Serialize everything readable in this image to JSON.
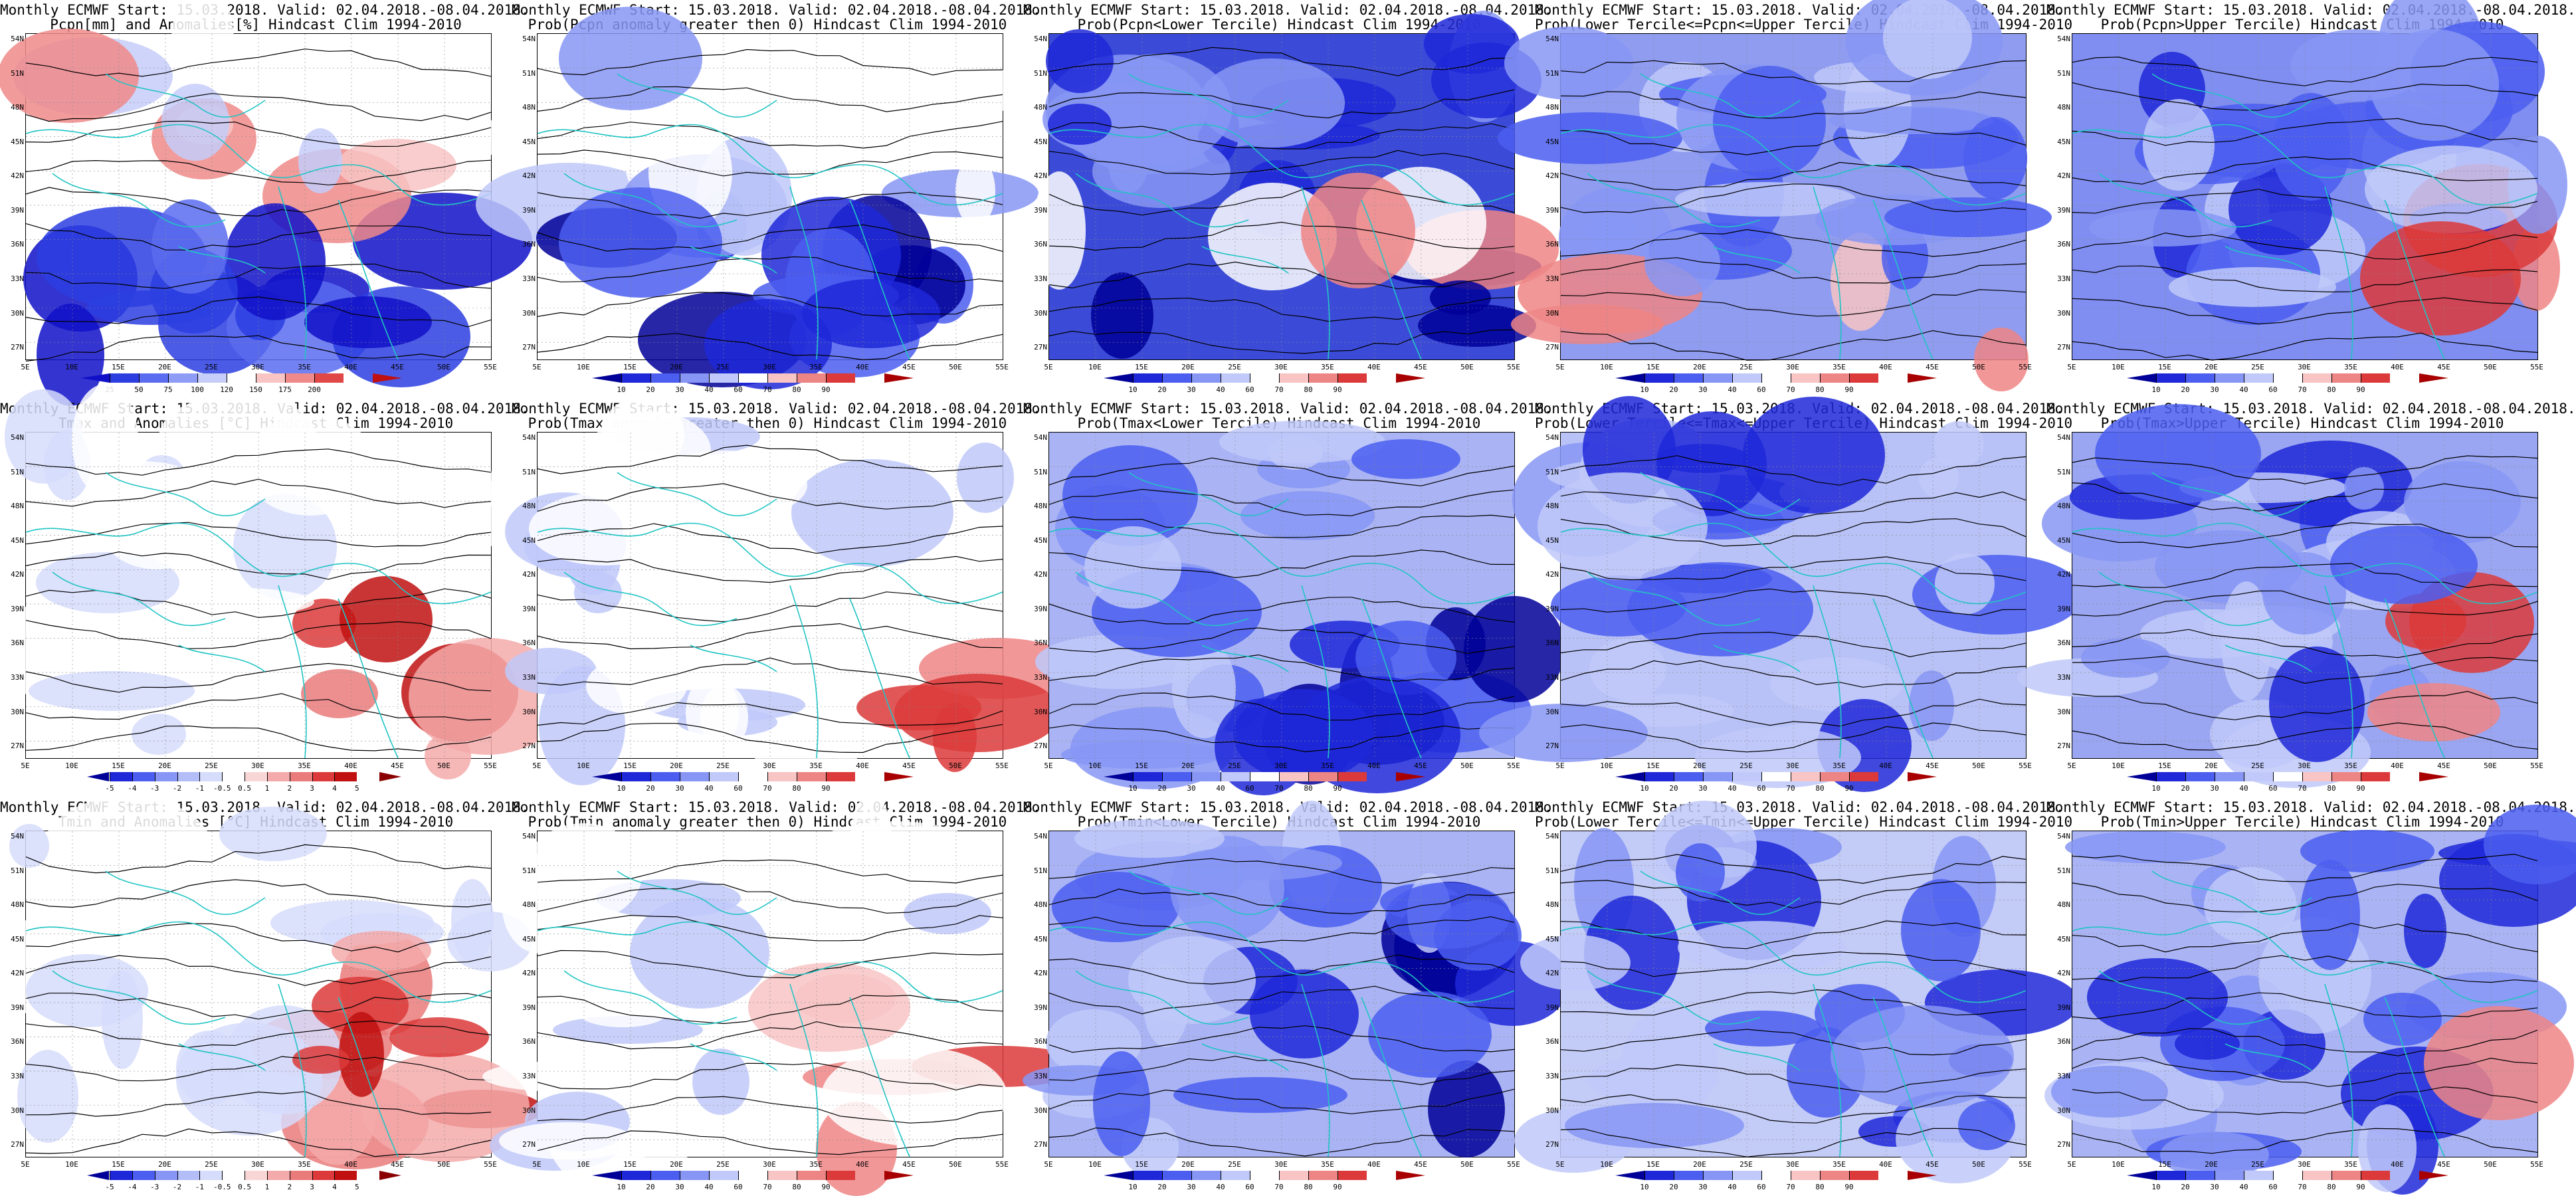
{
  "rows": [
    {
      "variable": "Pcpn",
      "panels": [
        {
          "title1": "Monthly ECMWF Start: 15.03.2018. Valid: 02.04.2018.-08.04.2018.",
          "title2": "Pcpn[mm] and Anomalies[%] Hindcast Clim 1994-2010",
          "scale": "pcpn_anom",
          "base_color": "#ffffff"
        },
        {
          "title1": "Monthly ECMWF Start: 15.03.2018. Valid: 02.04.2018.-08.04.2018.",
          "title2": "Prob(Pcpn anomaly greater then 0) Hindcast Clim 1994-2010",
          "scale": "prob",
          "base_color": "#ffffff"
        },
        {
          "title1": "Monthly ECMWF Start: 15.03.2018. Valid: 02.04.2018.-08.04.2018.",
          "title2": "Prob(Pcpn<Lower Tercile) Hindcast Clim 1994-2010",
          "scale": "prob",
          "base_color": "#3b4bd8"
        },
        {
          "title1": "Monthly ECMWF Start: 15.03.2018. Valid: 02.04.2018.-08.04.2018.",
          "title2": "Prob(Lower Tercile<=Pcpn<=Upper Tercile) Hindcast Clim 1994-2010",
          "scale": "prob",
          "base_color": "#8f9cf0"
        },
        {
          "title1": "Monthly ECMWF Start: 15.03.2018. Valid: 02.04.2018.-08.04.2018.",
          "title2": "Prob(Pcpn>Upper Tercile) Hindcast Clim 1994-2010",
          "scale": "prob",
          "base_color": "#7f8ef0"
        }
      ]
    },
    {
      "variable": "Tmax",
      "panels": [
        {
          "title1": "Monthly ECMWF Start: 15.03.2018. Valid: 02.04.2018.-08.04.2018.",
          "title2": "Tmax and Anomalies [°C] Hindcast Clim 1994-2010",
          "scale": "temp_anom",
          "base_color": "#ffffff"
        },
        {
          "title1": "Monthly ECMWF Start: 15.03.2018. Valid: 02.04.2018.-08.04.2018.",
          "title2": "Prob(Tmax anomaly greater then 0) Hindcast Clim 1994-2010",
          "scale": "prob",
          "base_color": "#ffffff"
        },
        {
          "title1": "Monthly ECMWF Start: 15.03.2018. Valid: 02.04.2018.-08.04.2018.",
          "title2": "Prob(Tmax<Lower Tercile) Hindcast Clim 1994-2010",
          "scale": "prob",
          "base_color": "#aab4f4"
        },
        {
          "title1": "Monthly ECMWF Start: 15.03.2018. Valid: 02.04.2018.-08.04.2018.",
          "title2": "Prob(Lower Tercile<=Tmax<=Upper Tercile) Hindcast Clim 1994-2010",
          "scale": "prob",
          "base_color": "#b9c2f6"
        },
        {
          "title1": "Monthly ECMWF Start: 15.03.2018. Valid: 02.04.2018.-08.04.2018.",
          "title2": "Prob(Tmax>Upper Tercile) Hindcast Clim 1994-2010",
          "scale": "prob",
          "base_color": "#9aa6f2"
        }
      ]
    },
    {
      "variable": "Tmin",
      "panels": [
        {
          "title1": "Monthly ECMWF Start: 15.03.2018. Valid: 02.04.2018.-08.04.2018.",
          "title2": "Tmin and Anomalies [°C] Hindcast Clim 1994-2010",
          "scale": "temp_anom",
          "base_color": "#ffffff"
        },
        {
          "title1": "Monthly ECMWF Start: 15.03.2018. Valid: 02.04.2018.-08.04.2018.",
          "title2": "Prob(Tmin anomaly greater then 0) Hindcast Clim 1994-2010",
          "scale": "prob",
          "base_color": "#ffffff"
        },
        {
          "title1": "Monthly ECMWF Start: 15.03.2018. Valid: 02.04.2018.-08.04.2018.",
          "title2": "Prob(Tmin<Lower Tercile) Hindcast Clim 1994-2010",
          "scale": "prob",
          "base_color": "#aab4f4"
        },
        {
          "title1": "Monthly ECMWF Start: 15.03.2018. Valid: 02.04.2018.-08.04.2018.",
          "title2": "Prob(Lower Tercile<=Tmin<=Upper Tercile) Hindcast Clim 1994-2010",
          "scale": "prob",
          "base_color": "#c3cbf7"
        },
        {
          "title1": "Monthly ECMWF Start: 15.03.2018. Valid: 02.04.2018.-08.04.2018.",
          "title2": "Prob(Tmin>Upper Tercile) Hindcast Clim 1994-2010",
          "scale": "prob",
          "base_color": "#aab4f4"
        }
      ]
    }
  ],
  "latitude_labels": [
    "54N",
    "51N",
    "48N",
    "45N",
    "42N",
    "39N",
    "36N",
    "33N",
    "30N",
    "27N"
  ],
  "longitude_labels": [
    "5E",
    "10E",
    "15E",
    "20E",
    "25E",
    "30E",
    "35E",
    "40E",
    "45E",
    "50E",
    "55E"
  ],
  "colorbars": {
    "pcpn_anom": {
      "labels": [
        "25",
        "50",
        "75",
        "100",
        "120",
        "150",
        "175",
        "200"
      ],
      "colors": [
        "#1010c8",
        "#2c3ee0",
        "#5a6cf0",
        "#8f9cf6",
        "#c6cdf9",
        "#ffffff",
        "#f8c4c4",
        "#f08a8a",
        "#e04848",
        "#c01010"
      ]
    },
    "prob": {
      "labels": [
        "10",
        "20",
        "30",
        "40",
        "60",
        "70",
        "80",
        "90"
      ],
      "colors": [
        "#000098",
        "#1e28d8",
        "#4b5ef0",
        "#8796f4",
        "#c0c9f9",
        "#ffffff",
        "#f8c4c4",
        "#ee8585",
        "#dc3a3a",
        "#a80000"
      ]
    },
    "temp_anom": {
      "labels": [
        "-5",
        "-4",
        "-3",
        "-2",
        "-1",
        "-0.5",
        "0.5",
        "1",
        "2",
        "3",
        "4",
        "5"
      ],
      "colors": [
        "#000098",
        "#1e28d8",
        "#4b5ef0",
        "#8796f4",
        "#b3bdf8",
        "#d6dcfb",
        "#ffffff",
        "#f9d6d6",
        "#f4aaaa",
        "#ea7b7b",
        "#dc3a3a",
        "#c01010",
        "#8a0000"
      ]
    }
  },
  "colors": {
    "coastline": "#21c4c4",
    "contour": "#000000"
  }
}
